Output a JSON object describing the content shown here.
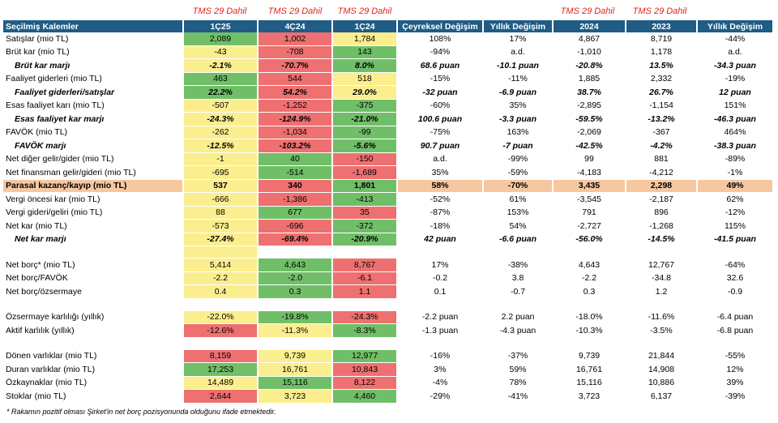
{
  "tms_label": "TMS 29 Dahil",
  "headers": [
    "Seçilmiş Kalemler",
    "1Ç25",
    "4Ç24",
    "1Ç24",
    "Çeyreksel Değişim",
    "Yıllık Değişim",
    "2024",
    "2023",
    "Yıllık Değişim"
  ],
  "rows": [
    {
      "type": "data",
      "label": "Satışlar (mio TL)",
      "cells": [
        "2,089",
        "1,002",
        "1,784",
        "108%",
        "17%",
        "4,867",
        "8,719",
        "-44%"
      ],
      "colors": [
        "g",
        "r",
        "y",
        "n",
        "n",
        "n",
        "n",
        "n"
      ]
    },
    {
      "type": "data",
      "label": "Brüt kar (mio TL)",
      "cells": [
        "-43",
        "-708",
        "143",
        "-94%",
        "a.d.",
        "-1,010",
        "1,178",
        "a.d."
      ],
      "colors": [
        "y",
        "r",
        "g",
        "n",
        "n",
        "n",
        "n",
        "n"
      ]
    },
    {
      "type": "margin",
      "label": "Brüt kar marjı",
      "cells": [
        "-2.1%",
        "-70.7%",
        "8.0%",
        "68.6 puan",
        "-10.1 puan",
        "-20.8%",
        "13.5%",
        "-34.3 puan"
      ],
      "colors": [
        "y",
        "r",
        "g",
        "n",
        "n",
        "n",
        "n",
        "n"
      ]
    },
    {
      "type": "data",
      "label": "Faaliyet giderleri (mio TL)",
      "cells": [
        "463",
        "544",
        "518",
        "-15%",
        "-11%",
        "1,885",
        "2,332",
        "-19%"
      ],
      "colors": [
        "g",
        "r",
        "y",
        "n",
        "n",
        "n",
        "n",
        "n"
      ]
    },
    {
      "type": "margin",
      "label": "Faaliyet giderleri/satışlar",
      "cells": [
        "22.2%",
        "54.2%",
        "29.0%",
        "-32 puan",
        "-6.9 puan",
        "38.7%",
        "26.7%",
        "12 puan"
      ],
      "colors": [
        "g",
        "r",
        "y",
        "n",
        "n",
        "n",
        "n",
        "n"
      ]
    },
    {
      "type": "data",
      "label": "Esas faaliyet karı (mio TL)",
      "cells": [
        "-507",
        "-1,252",
        "-375",
        "-60%",
        "35%",
        "-2,895",
        "-1,154",
        "151%"
      ],
      "colors": [
        "y",
        "r",
        "g",
        "n",
        "n",
        "n",
        "n",
        "n"
      ]
    },
    {
      "type": "margin",
      "label": "Esas faaliyet kar marjı",
      "cells": [
        "-24.3%",
        "-124.9%",
        "-21.0%",
        "100.6 puan",
        "-3.3 puan",
        "-59.5%",
        "-13.2%",
        "-46.3 puan"
      ],
      "colors": [
        "y",
        "r",
        "g",
        "n",
        "n",
        "n",
        "n",
        "n"
      ]
    },
    {
      "type": "data",
      "label": "FAVÖK (mio TL)",
      "cells": [
        "-262",
        "-1,034",
        "-99",
        "-75%",
        "163%",
        "-2,069",
        "-367",
        "464%"
      ],
      "colors": [
        "y",
        "r",
        "g",
        "n",
        "n",
        "n",
        "n",
        "n"
      ]
    },
    {
      "type": "margin",
      "label": "FAVÖK marjı",
      "cells": [
        "-12.5%",
        "-103.2%",
        "-5.6%",
        "90.7 puan",
        "-7 puan",
        "-42.5%",
        "-4.2%",
        "-38.3 puan"
      ],
      "colors": [
        "y",
        "r",
        "g",
        "n",
        "n",
        "n",
        "n",
        "n"
      ]
    },
    {
      "type": "data",
      "label": "Net diğer gelir/gider (mio TL)",
      "cells": [
        "-1",
        "40",
        "-150",
        "a.d.",
        "-99%",
        "99",
        "881",
        "-89%"
      ],
      "colors": [
        "y",
        "g",
        "r",
        "n",
        "n",
        "n",
        "n",
        "n"
      ]
    },
    {
      "type": "data",
      "label": "Net finansman gelir/gideri (mio TL)",
      "cells": [
        "-695",
        "-514",
        "-1,689",
        "35%",
        "-59%",
        "-4,183",
        "-4,212",
        "-1%"
      ],
      "colors": [
        "y",
        "g",
        "r",
        "n",
        "n",
        "n",
        "n",
        "n"
      ]
    },
    {
      "type": "highlight",
      "label": "Parasal kazanç/kayıp (mio TL)",
      "cells": [
        "537",
        "340",
        "1,801",
        "58%",
        "-70%",
        "3,435",
        "2,298",
        "49%"
      ],
      "colors": [
        "y",
        "r",
        "g",
        "n",
        "n",
        "n",
        "n",
        "n"
      ]
    },
    {
      "type": "data",
      "label": "Vergi öncesi kar (mio TL)",
      "cells": [
        "-666",
        "-1,386",
        "-413",
        "-52%",
        "61%",
        "-3,545",
        "-2,187",
        "62%"
      ],
      "colors": [
        "y",
        "r",
        "g",
        "n",
        "n",
        "n",
        "n",
        "n"
      ]
    },
    {
      "type": "data",
      "label": "Vergi gideri/geliri (mio TL)",
      "cells": [
        "88",
        "677",
        "35",
        "-87%",
        "153%",
        "791",
        "896",
        "-12%"
      ],
      "colors": [
        "y",
        "g",
        "r",
        "n",
        "n",
        "n",
        "n",
        "n"
      ]
    },
    {
      "type": "data",
      "label": "Net kar (mio TL)",
      "cells": [
        "-573",
        "-696",
        "-372",
        "-18%",
        "54%",
        "-2,727",
        "-1,268",
        "115%"
      ],
      "colors": [
        "y",
        "r",
        "g",
        "n",
        "n",
        "n",
        "n",
        "n"
      ]
    },
    {
      "type": "margin",
      "label": "Net kar marjı",
      "cells": [
        "-27.4%",
        "-69.4%",
        "-20.9%",
        "42 puan",
        "-6.6 puan",
        "-56.0%",
        "-14.5%",
        "-41.5 puan"
      ],
      "colors": [
        "y",
        "r",
        "g",
        "n",
        "n",
        "n",
        "n",
        "n"
      ]
    },
    {
      "type": "gap",
      "label": "",
      "cells": [
        "",
        "",
        "",
        "",
        "",
        "",
        "",
        ""
      ],
      "colors": [
        "y",
        "n",
        "n",
        "n",
        "n",
        "n",
        "n",
        "n"
      ]
    },
    {
      "type": "data",
      "label": "Net borç* (mio TL)",
      "cells": [
        "5,414",
        "4,643",
        "8,767",
        "17%",
        "-38%",
        "4,643",
        "12,767",
        "-64%"
      ],
      "colors": [
        "y",
        "g",
        "r",
        "n",
        "n",
        "n",
        "n",
        "n"
      ]
    },
    {
      "type": "data",
      "label": "Net borç/FAVÖK",
      "cells": [
        "-2.2",
        "-2.0",
        "-6.1",
        "-0.2",
        "3.8",
        "-2.2",
        "-34.8",
        "32.6"
      ],
      "colors": [
        "y",
        "g",
        "r",
        "n",
        "n",
        "n",
        "n",
        "n"
      ]
    },
    {
      "type": "data",
      "label": "Net borç/özsermaye",
      "cells": [
        "0.4",
        "0.3",
        "1.1",
        "0.1",
        "-0.7",
        "0.3",
        "1.2",
        "-0.9"
      ],
      "colors": [
        "y",
        "g",
        "r",
        "n",
        "n",
        "n",
        "n",
        "n"
      ]
    },
    {
      "type": "gap",
      "label": "",
      "cells": [
        "",
        "",
        "",
        "",
        "",
        "",
        "",
        ""
      ],
      "colors": [
        "n",
        "n",
        "n",
        "n",
        "n",
        "n",
        "n",
        "n"
      ]
    },
    {
      "type": "data",
      "label": "Özsermaye karlılığı (yıllık)",
      "cells": [
        "-22.0%",
        "-19.8%",
        "-24.3%",
        "-2.2 puan",
        "2.2 puan",
        "-18.0%",
        "-11.6%",
        "-6.4 puan"
      ],
      "colors": [
        "y",
        "g",
        "r",
        "n",
        "n",
        "n",
        "n",
        "n"
      ]
    },
    {
      "type": "data",
      "label": "Aktif karlılık (yıllık)",
      "cells": [
        "-12.6%",
        "-11.3%",
        "-8.3%",
        "-1.3 puan",
        "-4.3 puan",
        "-10.3%",
        "-3.5%",
        "-6.8 puan"
      ],
      "colors": [
        "r",
        "y",
        "g",
        "n",
        "n",
        "n",
        "n",
        "n"
      ]
    },
    {
      "type": "gap",
      "label": "",
      "cells": [
        "",
        "",
        "",
        "",
        "",
        "",
        "",
        ""
      ],
      "colors": [
        "n",
        "n",
        "n",
        "n",
        "n",
        "n",
        "n",
        "n"
      ]
    },
    {
      "type": "data",
      "label": "Dönen varlıklar (mio TL)",
      "cells": [
        "8,159",
        "9,739",
        "12,977",
        "-16%",
        "-37%",
        "9,739",
        "21,844",
        "-55%"
      ],
      "colors": [
        "r",
        "y",
        "g",
        "n",
        "n",
        "n",
        "n",
        "n"
      ]
    },
    {
      "type": "data",
      "label": "Duran varlıklar (mio TL)",
      "cells": [
        "17,253",
        "16,761",
        "10,843",
        "3%",
        "59%",
        "16,761",
        "14,908",
        "12%"
      ],
      "colors": [
        "g",
        "y",
        "r",
        "n",
        "n",
        "n",
        "n",
        "n"
      ]
    },
    {
      "type": "data",
      "label": "Özkaynaklar (mio TL)",
      "cells": [
        "14,489",
        "15,116",
        "8,122",
        "-4%",
        "78%",
        "15,116",
        "10,886",
        "39%"
      ],
      "colors": [
        "y",
        "g",
        "r",
        "n",
        "n",
        "n",
        "n",
        "n"
      ]
    },
    {
      "type": "data",
      "label": "Stoklar (mio TL)",
      "cells": [
        "2,644",
        "3,723",
        "4,460",
        "-29%",
        "-41%",
        "3,723",
        "6,137",
        "-39%"
      ],
      "colors": [
        "r",
        "y",
        "g",
        "n",
        "n",
        "n",
        "n",
        "n"
      ]
    }
  ],
  "footnote": "* Rakamın pozitif olması Şirket'in net borç pozisyonunda olduğunu ifade etmektedir.",
  "colors": {
    "header_bg": "#1f5c86",
    "green": "#70bf68",
    "yellow": "#fbee8f",
    "red": "#ee7070",
    "highlight": "#f7c7a0",
    "tms_red": "#e0241b"
  }
}
